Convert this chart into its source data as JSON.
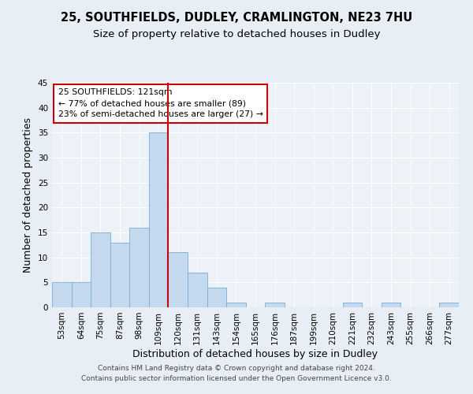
{
  "title1": "25, SOUTHFIELDS, DUDLEY, CRAMLINGTON, NE23 7HU",
  "title2": "Size of property relative to detached houses in Dudley",
  "xlabel": "Distribution of detached houses by size in Dudley",
  "ylabel": "Number of detached properties",
  "bar_labels": [
    "53sqm",
    "64sqm",
    "75sqm",
    "87sqm",
    "98sqm",
    "109sqm",
    "120sqm",
    "131sqm",
    "143sqm",
    "154sqm",
    "165sqm",
    "176sqm",
    "187sqm",
    "199sqm",
    "210sqm",
    "221sqm",
    "232sqm",
    "243sqm",
    "255sqm",
    "266sqm",
    "277sqm"
  ],
  "bar_values": [
    5,
    5,
    15,
    13,
    16,
    35,
    11,
    7,
    4,
    1,
    0,
    1,
    0,
    0,
    0,
    1,
    0,
    1,
    0,
    0,
    1
  ],
  "bar_color": "#c5d9ee",
  "bar_edge_color": "#7aadd4",
  "vline_index": 5,
  "vline_color": "#cc0000",
  "annotation_title": "25 SOUTHFIELDS: 121sqm",
  "annotation_line1": "← 77% of detached houses are smaller (89)",
  "annotation_line2": "23% of semi-detached houses are larger (27) →",
  "annotation_box_color": "#ffffff",
  "annotation_border_color": "#cc0000",
  "ylim": [
    0,
    45
  ],
  "yticks": [
    0,
    5,
    10,
    15,
    20,
    25,
    30,
    35,
    40,
    45
  ],
  "bg_color": "#e8eef5",
  "plot_bg_color": "#edf2f8",
  "footer1": "Contains HM Land Registry data © Crown copyright and database right 2024.",
  "footer2": "Contains public sector information licensed under the Open Government Licence v3.0.",
  "title_fontsize": 10.5,
  "subtitle_fontsize": 9.5,
  "axis_label_fontsize": 9,
  "tick_fontsize": 7.5,
  "footer_fontsize": 6.5
}
